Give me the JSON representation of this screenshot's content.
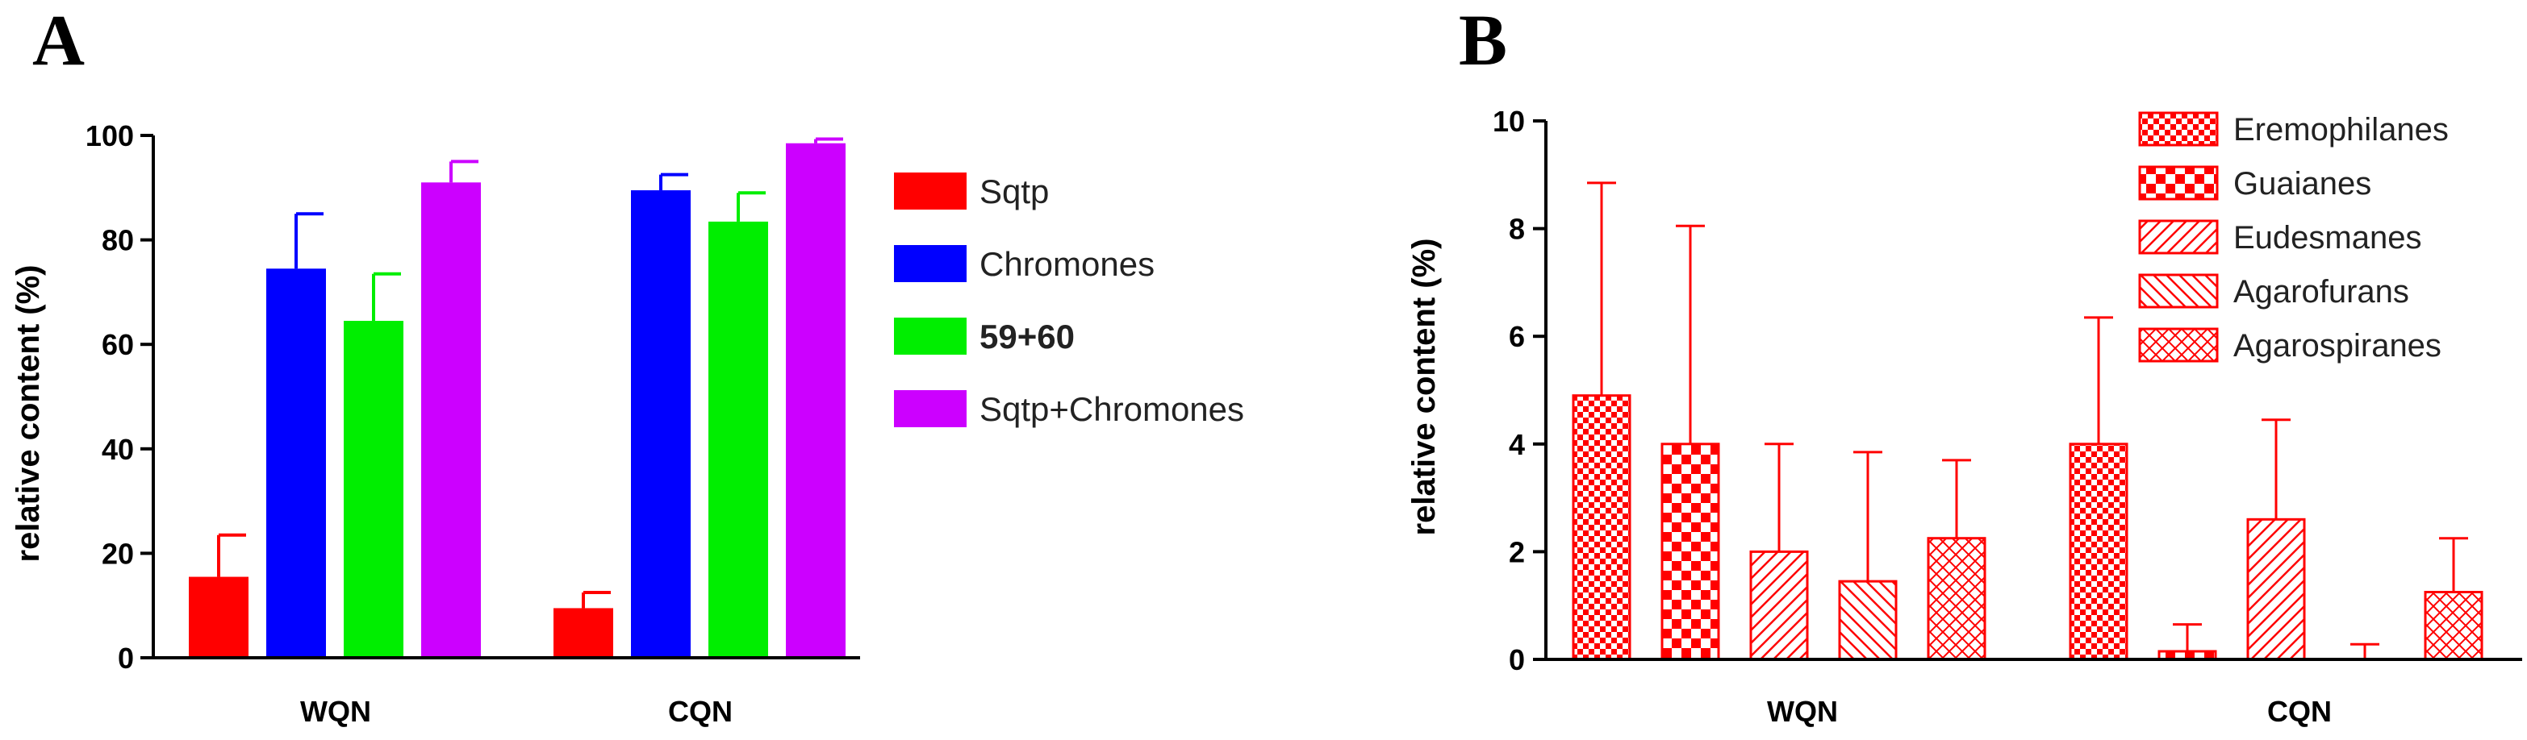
{
  "chart_data": [
    {
      "panel": "A",
      "type": "bar",
      "ylabel": "relative content (%)",
      "ylim": [
        0,
        100
      ],
      "yticks": [
        "0",
        "20",
        "40",
        "60",
        "80",
        "100"
      ],
      "categories": [
        "WQN",
        "CQN"
      ],
      "legend_position": "right",
      "series": [
        {
          "name": "Sqtp",
          "color": "#ff0000",
          "values": [
            15.5,
            9.5
          ],
          "errors": [
            8.0,
            3.0
          ]
        },
        {
          "name": "Chromones",
          "color": "#0000ff",
          "values": [
            74.5,
            89.5
          ],
          "errors": [
            10.5,
            3.0
          ]
        },
        {
          "name": "59+60",
          "color": "#00ee00",
          "values": [
            64.5,
            83.5
          ],
          "errors": [
            9.0,
            5.5
          ],
          "bold": true
        },
        {
          "name": "Sqtp+Chromones",
          "color": "#cc00ff",
          "values": [
            91.0,
            98.5
          ],
          "errors": [
            4.0,
            0.8
          ]
        }
      ]
    },
    {
      "panel": "B",
      "type": "bar",
      "ylabel": "relative content (%)",
      "ylim": [
        0,
        10
      ],
      "yticks": [
        "0",
        "2",
        "4",
        "6",
        "8",
        "10"
      ],
      "categories": [
        "WQN",
        "CQN"
      ],
      "legend_position": "top-right",
      "color": "#ff0000",
      "series": [
        {
          "name": "Eremophilanes",
          "pattern": "fine-check",
          "values": [
            4.9,
            4.0
          ],
          "errors": [
            3.95,
            2.35
          ]
        },
        {
          "name": "Guaianes",
          "pattern": "coarse-check",
          "values": [
            4.0,
            0.15
          ],
          "errors": [
            4.05,
            0.5
          ]
        },
        {
          "name": "Eudesmanes",
          "pattern": "diag-up",
          "values": [
            2.0,
            2.6
          ],
          "errors": [
            2.0,
            1.85
          ]
        },
        {
          "name": "Agarofurans",
          "pattern": "diag-down",
          "values": [
            1.45,
            0.0
          ],
          "errors": [
            2.4,
            0.28
          ]
        },
        {
          "name": "Agarospiranes",
          "pattern": "cross-hatch",
          "values": [
            2.25,
            1.25
          ],
          "errors": [
            1.45,
            1.0
          ]
        }
      ]
    }
  ]
}
